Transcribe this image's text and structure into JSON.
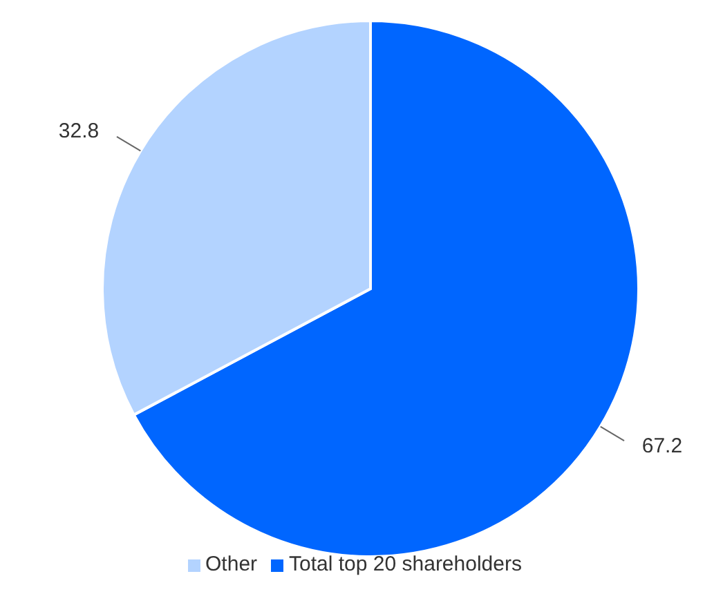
{
  "chart_data": {
    "type": "pie",
    "categories": [
      "Total top 20 shareholders",
      "Other"
    ],
    "values": [
      67.2,
      32.8
    ],
    "colors": [
      "#0066ff",
      "#b3d3ff"
    ],
    "data_labels": true,
    "legend": "bottom"
  }
}
